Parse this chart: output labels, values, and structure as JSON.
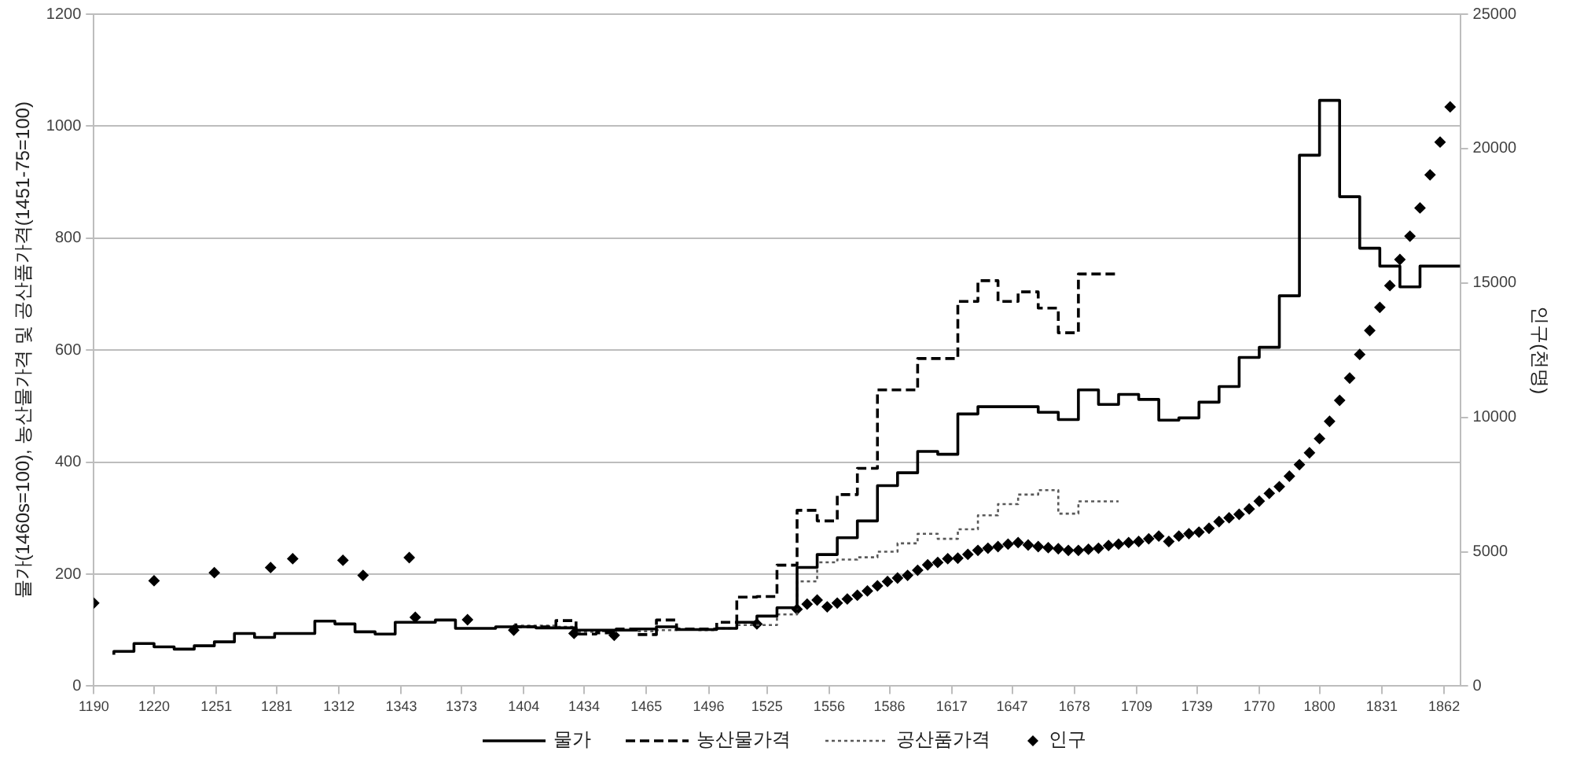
{
  "chart_data": {
    "type": "step",
    "ylabel": "물가(1460s=100), 농산물가격 및 공산품가격(1451-75=100)",
    "y2label": "인구(천명)",
    "xlim": [
      1190,
      1870
    ],
    "xticks": [
      1190,
      1220,
      1251,
      1281,
      1312,
      1343,
      1373,
      1404,
      1434,
      1465,
      1496,
      1525,
      1556,
      1586,
      1617,
      1647,
      1678,
      1709,
      1739,
      1770,
      1800,
      1831,
      1862
    ],
    "ylim": [
      0,
      1200
    ],
    "yticks": [
      0,
      200,
      400,
      600,
      800,
      1000,
      1200
    ],
    "y2lim": [
      0,
      25000
    ],
    "y2ticks": [
      0,
      5000,
      10000,
      15000,
      20000,
      25000
    ],
    "grid": "y",
    "legend": "bottom",
    "series": [
      {
        "name": "물가",
        "color": "#000000",
        "line_style": "solid",
        "marker": "none",
        "x": [
          1200,
          1210,
          1220,
          1230,
          1240,
          1250,
          1260,
          1270,
          1280,
          1290,
          1300,
          1310,
          1320,
          1330,
          1340,
          1350,
          1360,
          1370,
          1380,
          1390,
          1400,
          1410,
          1420,
          1430,
          1440,
          1450,
          1460,
          1470,
          1480,
          1490,
          1500,
          1510,
          1520,
          1530,
          1540,
          1550,
          1560,
          1570,
          1580,
          1590,
          1600,
          1610,
          1620,
          1630,
          1640,
          1650,
          1660,
          1670,
          1680,
          1690,
          1700,
          1710,
          1720,
          1730,
          1740,
          1750,
          1760,
          1770,
          1780,
          1790,
          1800,
          1810,
          1820,
          1830,
          1840,
          1850,
          1860,
          1870
        ],
        "values": [
          56,
          62,
          76,
          70,
          66,
          72,
          79,
          94,
          87,
          94,
          94,
          116,
          111,
          97,
          93,
          114,
          114,
          118,
          103,
          103,
          106,
          106,
          104,
          104,
          100,
          100,
          100,
          102,
          106,
          101,
          101,
          103,
          114,
          125,
          140,
          212,
          235,
          265,
          295,
          358,
          381,
          419,
          414,
          486,
          499,
          499,
          499,
          489,
          476,
          529,
          503,
          521,
          512,
          475,
          479,
          507,
          535,
          587,
          605,
          697,
          948,
          1046,
          874,
          782,
          750,
          713,
          750,
          750
        ]
      },
      {
        "name": "농산물가격",
        "color": "#000000",
        "line_style": "dashed",
        "marker": "none",
        "x": [
          1400,
          1410,
          1420,
          1430,
          1440,
          1450,
          1460,
          1470,
          1480,
          1490,
          1500,
          1510,
          1520,
          1530,
          1540,
          1550,
          1560,
          1570,
          1580,
          1590,
          1600,
          1610,
          1620,
          1630,
          1640,
          1650,
          1660,
          1670,
          1680,
          1690,
          1700
        ],
        "values": [
          112,
          106,
          106,
          117,
          93,
          95,
          102,
          92,
          118,
          102,
          102,
          114,
          159,
          160,
          216,
          314,
          295,
          342,
          389,
          529,
          529,
          585,
          585,
          687,
          724,
          687,
          704,
          675,
          631,
          736,
          736
        ]
      },
      {
        "name": "공산품가격",
        "color": "#595959",
        "line_style": "dotted",
        "marker": "none",
        "x": [
          1400,
          1410,
          1420,
          1430,
          1440,
          1450,
          1460,
          1470,
          1480,
          1490,
          1500,
          1510,
          1520,
          1530,
          1540,
          1550,
          1560,
          1570,
          1580,
          1590,
          1600,
          1610,
          1620,
          1630,
          1640,
          1650,
          1660,
          1670,
          1680,
          1690,
          1700
        ],
        "values": [
          110,
          108,
          108,
          106,
          97,
          98,
          100,
          98,
          100,
          101,
          100,
          103,
          109,
          109,
          128,
          187,
          221,
          226,
          230,
          240,
          255,
          272,
          263,
          280,
          305,
          325,
          342,
          350,
          308,
          330,
          330
        ]
      },
      {
        "name": "인구",
        "type": "scatter",
        "axis": "y2",
        "color": "#000000",
        "marker": "diamond",
        "x": [
          1190,
          1220,
          1250,
          1278,
          1289,
          1314,
          1324,
          1347,
          1350,
          1376,
          1399,
          1429,
          1449,
          1520,
          1540,
          1545,
          1550,
          1555,
          1560,
          1565,
          1570,
          1575,
          1580,
          1585,
          1590,
          1595,
          1600,
          1605,
          1610,
          1615,
          1620,
          1625,
          1630,
          1635,
          1640,
          1645,
          1650,
          1655,
          1660,
          1665,
          1670,
          1675,
          1680,
          1685,
          1690,
          1695,
          1700,
          1705,
          1710,
          1715,
          1720,
          1725,
          1730,
          1735,
          1740,
          1745,
          1750,
          1755,
          1760,
          1765,
          1770,
          1775,
          1780,
          1785,
          1790,
          1795,
          1800,
          1805,
          1810,
          1815,
          1820,
          1825,
          1830,
          1835,
          1840,
          1845,
          1850,
          1855,
          1860,
          1865
        ],
        "values": [
          3090,
          3920,
          4220,
          4410,
          4740,
          4680,
          4120,
          4780,
          2560,
          2470,
          2080,
          1960,
          1890,
          2310,
          2860,
          3050,
          3200,
          2950,
          3090,
          3240,
          3380,
          3540,
          3730,
          3890,
          4020,
          4120,
          4310,
          4510,
          4600,
          4740,
          4760,
          4900,
          5050,
          5130,
          5190,
          5280,
          5340,
          5250,
          5190,
          5150,
          5110,
          5050,
          5050,
          5090,
          5130,
          5230,
          5280,
          5340,
          5380,
          5480,
          5580,
          5380,
          5580,
          5670,
          5730,
          5870,
          6120,
          6260,
          6390,
          6590,
          6880,
          7170,
          7420,
          7810,
          8240,
          8680,
          9210,
          9850,
          10630,
          11460,
          12340,
          13230,
          14090,
          14900,
          15870,
          16740,
          17790,
          19020,
          20240,
          21550
        ]
      }
    ]
  }
}
